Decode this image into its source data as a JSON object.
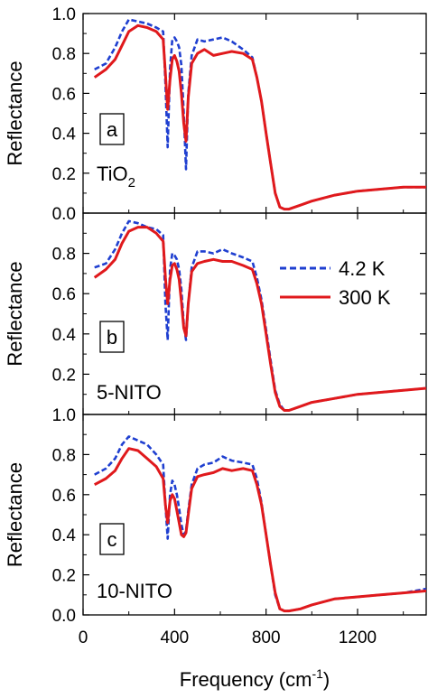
{
  "chart_data": {
    "type": "line",
    "xlabel": "Frequency (cm",
    "xlabel_sup": "-1",
    "xlabel_close": ")",
    "xlim": [
      0,
      1500
    ],
    "xticks": [
      0,
      400,
      800,
      1200
    ],
    "ylim": [
      0.0,
      1.0
    ],
    "legend": {
      "placement": "center-right of middle panel",
      "entries": [
        {
          "label": "4.2 K",
          "color": "#1f3fd0",
          "style": "dashed"
        },
        {
          "label": "300 K",
          "color": "#e0191c",
          "style": "solid"
        }
      ]
    },
    "panels": [
      {
        "letter": "a",
        "sample": "TiO",
        "sample_sub": "2",
        "ylabel": "Reflectance",
        "yticks": [
          "0.0",
          "0.2",
          "0.4",
          "0.6",
          "0.8",
          "1.0"
        ],
        "series": [
          {
            "name": "4.2 K",
            "x": [
              50,
              100,
              140,
              170,
              200,
              240,
              280,
              320,
              350,
              360,
              370,
              380,
              390,
              400,
              410,
              420,
              430,
              440,
              450,
              460,
              475,
              500,
              530,
              570,
              610,
              650,
              700,
              740,
              760,
              780,
              800,
              820,
              840,
              860,
              880,
              900,
              950,
              1000,
              1100,
              1200,
              1300,
              1400,
              1500
            ],
            "y": [
              0.72,
              0.75,
              0.83,
              0.91,
              0.97,
              0.96,
              0.95,
              0.93,
              0.91,
              0.65,
              0.33,
              0.72,
              0.87,
              0.88,
              0.86,
              0.83,
              0.74,
              0.5,
              0.22,
              0.6,
              0.79,
              0.87,
              0.86,
              0.87,
              0.88,
              0.86,
              0.82,
              0.78,
              0.68,
              0.56,
              0.4,
              0.25,
              0.1,
              0.03,
              0.02,
              0.02,
              0.04,
              0.06,
              0.09,
              0.11,
              0.12,
              0.13,
              0.13
            ]
          },
          {
            "name": "300 K",
            "x": [
              50,
              100,
              140,
              170,
              200,
              240,
              280,
              320,
              350,
              360,
              370,
              380,
              390,
              400,
              410,
              420,
              430,
              440,
              450,
              460,
              475,
              500,
              530,
              570,
              610,
              650,
              700,
              740,
              760,
              780,
              800,
              820,
              840,
              860,
              880,
              900,
              950,
              1000,
              1100,
              1200,
              1300,
              1400,
              1500
            ],
            "y": [
              0.68,
              0.72,
              0.77,
              0.84,
              0.91,
              0.94,
              0.93,
              0.91,
              0.87,
              0.7,
              0.52,
              0.67,
              0.77,
              0.79,
              0.76,
              0.71,
              0.6,
              0.45,
              0.36,
              0.58,
              0.75,
              0.8,
              0.82,
              0.79,
              0.8,
              0.81,
              0.8,
              0.77,
              0.68,
              0.56,
              0.4,
              0.25,
              0.1,
              0.03,
              0.02,
              0.02,
              0.04,
              0.06,
              0.09,
              0.11,
              0.12,
              0.13,
              0.13
            ]
          }
        ]
      },
      {
        "letter": "b",
        "sample": "5-NITO",
        "sample_sub": "",
        "ylabel": "Reflectance",
        "yticks": [
          "0.2",
          "0.4",
          "0.6",
          "0.8"
        ],
        "series": [
          {
            "name": "4.2 K",
            "x": [
              50,
              100,
              140,
              170,
              200,
              240,
              280,
              320,
              350,
              360,
              370,
              380,
              390,
              400,
              410,
              420,
              430,
              440,
              450,
              460,
              475,
              500,
              530,
              570,
              610,
              650,
              700,
              740,
              760,
              780,
              800,
              820,
              840,
              860,
              880,
              900,
              950,
              1000,
              1100,
              1200,
              1300,
              1400,
              1500
            ],
            "y": [
              0.73,
              0.75,
              0.82,
              0.9,
              0.96,
              0.95,
              0.93,
              0.92,
              0.89,
              0.55,
              0.37,
              0.72,
              0.8,
              0.79,
              0.77,
              0.72,
              0.62,
              0.45,
              0.37,
              0.55,
              0.73,
              0.81,
              0.81,
              0.8,
              0.82,
              0.8,
              0.78,
              0.76,
              0.68,
              0.57,
              0.42,
              0.27,
              0.12,
              0.05,
              0.02,
              0.02,
              0.04,
              0.06,
              0.08,
              0.1,
              0.11,
              0.12,
              0.13
            ]
          },
          {
            "name": "300 K",
            "x": [
              50,
              100,
              140,
              170,
              200,
              240,
              280,
              320,
              350,
              360,
              370,
              380,
              390,
              400,
              410,
              420,
              430,
              440,
              450,
              460,
              475,
              500,
              530,
              570,
              610,
              650,
              700,
              740,
              760,
              780,
              800,
              820,
              840,
              860,
              880,
              900,
              950,
              1000,
              1100,
              1200,
              1300,
              1400,
              1500
            ],
            "y": [
              0.68,
              0.72,
              0.77,
              0.85,
              0.91,
              0.93,
              0.93,
              0.9,
              0.86,
              0.68,
              0.55,
              0.67,
              0.74,
              0.75,
              0.72,
              0.67,
              0.56,
              0.43,
              0.39,
              0.55,
              0.71,
              0.75,
              0.76,
              0.77,
              0.76,
              0.76,
              0.74,
              0.72,
              0.65,
              0.55,
              0.4,
              0.25,
              0.11,
              0.04,
              0.02,
              0.02,
              0.04,
              0.06,
              0.08,
              0.1,
              0.11,
              0.12,
              0.13
            ]
          }
        ]
      },
      {
        "letter": "c",
        "sample": "10-NITO",
        "sample_sub": "",
        "ylabel": "Reflectance",
        "yticks": [
          "0.0",
          "0.2",
          "0.4",
          "0.6",
          "0.8",
          "1.0"
        ],
        "series": [
          {
            "name": "4.2 K",
            "x": [
              50,
              100,
              140,
              170,
              200,
              240,
              280,
              320,
              350,
              360,
              370,
              380,
              390,
              400,
              410,
              420,
              430,
              440,
              450,
              460,
              475,
              500,
              530,
              570,
              610,
              650,
              700,
              740,
              760,
              780,
              800,
              820,
              840,
              860,
              880,
              900,
              950,
              1000,
              1100,
              1200,
              1300,
              1400,
              1500
            ],
            "y": [
              0.7,
              0.73,
              0.78,
              0.85,
              0.89,
              0.87,
              0.85,
              0.8,
              0.75,
              0.55,
              0.38,
              0.6,
              0.67,
              0.65,
              0.6,
              0.53,
              0.45,
              0.4,
              0.42,
              0.52,
              0.65,
              0.73,
              0.75,
              0.76,
              0.79,
              0.77,
              0.76,
              0.75,
              0.68,
              0.56,
              0.4,
              0.25,
              0.1,
              0.03,
              0.02,
              0.02,
              0.03,
              0.05,
              0.08,
              0.09,
              0.1,
              0.11,
              0.13
            ]
          },
          {
            "name": "300 K",
            "x": [
              50,
              100,
              140,
              170,
              200,
              240,
              280,
              320,
              350,
              360,
              370,
              380,
              390,
              400,
              410,
              420,
              430,
              440,
              450,
              460,
              475,
              500,
              530,
              570,
              610,
              650,
              700,
              740,
              760,
              780,
              800,
              820,
              840,
              860,
              880,
              900,
              950,
              1000,
              1100,
              1200,
              1300,
              1400,
              1500
            ],
            "y": [
              0.65,
              0.68,
              0.72,
              0.78,
              0.83,
              0.82,
              0.78,
              0.74,
              0.68,
              0.55,
              0.46,
              0.57,
              0.6,
              0.58,
              0.52,
              0.46,
              0.4,
              0.39,
              0.41,
              0.5,
              0.63,
              0.69,
              0.7,
              0.71,
              0.73,
              0.72,
              0.73,
              0.72,
              0.65,
              0.55,
              0.4,
              0.25,
              0.11,
              0.03,
              0.02,
              0.02,
              0.03,
              0.05,
              0.08,
              0.09,
              0.1,
              0.11,
              0.12
            ]
          }
        ]
      }
    ]
  }
}
